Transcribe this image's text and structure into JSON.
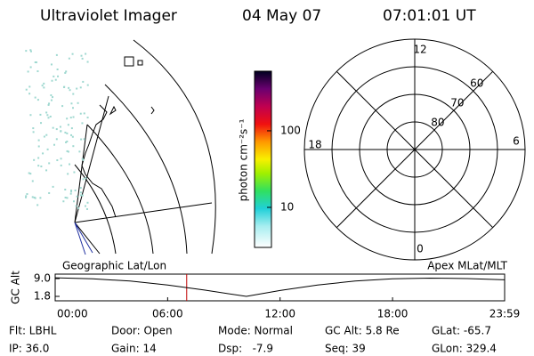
{
  "header": {
    "title": "Ultraviolet Imager",
    "date": "04 May 07",
    "time": "07:01:01 UT"
  },
  "map": {
    "left_label": "Geographic Lat/Lon",
    "right_label": "Apex MLat/MLT"
  },
  "chart_data": [
    {
      "type": "colorbar",
      "label": "photon cm⁻²s⁻¹",
      "log": true,
      "ylim": [
        3,
        600
      ],
      "yticks": [
        10,
        100
      ]
    },
    {
      "type": "polar",
      "angle_ticks": [
        12,
        18,
        6,
        0
      ],
      "rlim": [
        90,
        50
      ],
      "rticks": [
        80,
        70,
        60
      ]
    },
    {
      "type": "line",
      "ylabel": "GC Alt",
      "color": "#000000",
      "x": [
        0,
        2,
        4,
        6,
        8,
        10.2,
        12,
        14,
        16,
        18,
        20,
        22,
        23.98
      ],
      "values": [
        9.3,
        8.9,
        8.0,
        6.4,
        4.3,
        1.8,
        4.2,
        6.4,
        8.0,
        8.9,
        9.2,
        9.0,
        8.5
      ],
      "xlim": [
        0,
        23.98
      ],
      "xticks": [
        {
          "value": 0,
          "label": "00:00"
        },
        {
          "value": 6,
          "label": "06:00"
        },
        {
          "value": 12,
          "label": "12:00"
        },
        {
          "value": 18,
          "label": "18:00"
        },
        {
          "value": 23.98,
          "label": "23:59"
        }
      ],
      "ylim": [
        0,
        10.8
      ],
      "yticks": [
        {
          "value": 9,
          "label": "9.0"
        },
        {
          "value": 1.8,
          "label": "1.8"
        }
      ],
      "marker_x": 7.017,
      "marker_color": "#c00000"
    }
  ],
  "footer": {
    "rows": [
      [
        "Flt: LBHL",
        "Door: Open",
        "Mode: Normal",
        "GC Alt: 5.8 Re",
        "GLat: -65.7"
      ],
      [
        "IP: 36.0",
        "Gain: 14",
        "Dsp:   -7.9",
        "Seq: 39",
        "GLon: 329.4"
      ]
    ]
  }
}
